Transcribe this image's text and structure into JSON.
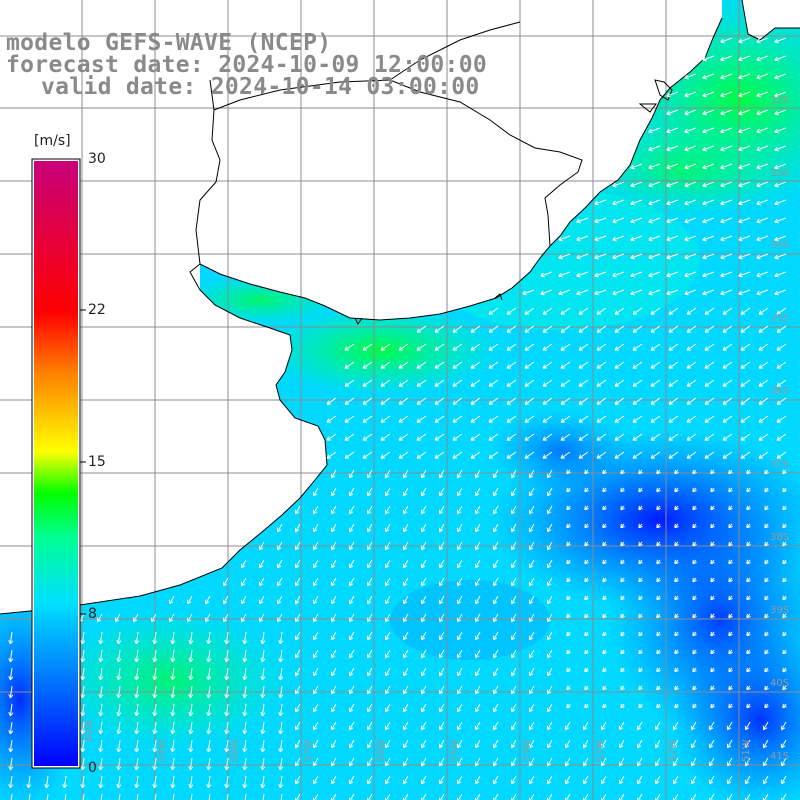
{
  "title": {
    "line1": "modelo GEFS-WAVE (NCEP)",
    "line2": "forecast date: 2024-10-09 12:00:00",
    "line3": "valid date: 2024-10-14 03:00:00"
  },
  "colorbar": {
    "unit": "[m/s]",
    "max_label": "30",
    "ticks": [
      {
        "label": "22",
        "value": 22
      },
      {
        "label": "15",
        "value": 15
      },
      {
        "label": "8",
        "value": 8
      },
      {
        "label": "0",
        "value": 0
      }
    ],
    "colors": [
      "#0000ff",
      "#00c8ff",
      "#00ffe0",
      "#00ff00",
      "#ffff00",
      "#ff8000",
      "#ff0000",
      "#c8007a"
    ]
  },
  "lat_labels": [
    "32S",
    "33S",
    "34S",
    "35S",
    "36S",
    "37S",
    "38S",
    "39S",
    "40S",
    "41S"
  ],
  "lon_labels": [
    "60W",
    "59W",
    "58W",
    "57W",
    "56W",
    "55W",
    "54W",
    "53W",
    "52W",
    "51W"
  ],
  "land_color": "#ffffff",
  "coast_color": "#000000",
  "grid_color": "#8c8c8c"
}
